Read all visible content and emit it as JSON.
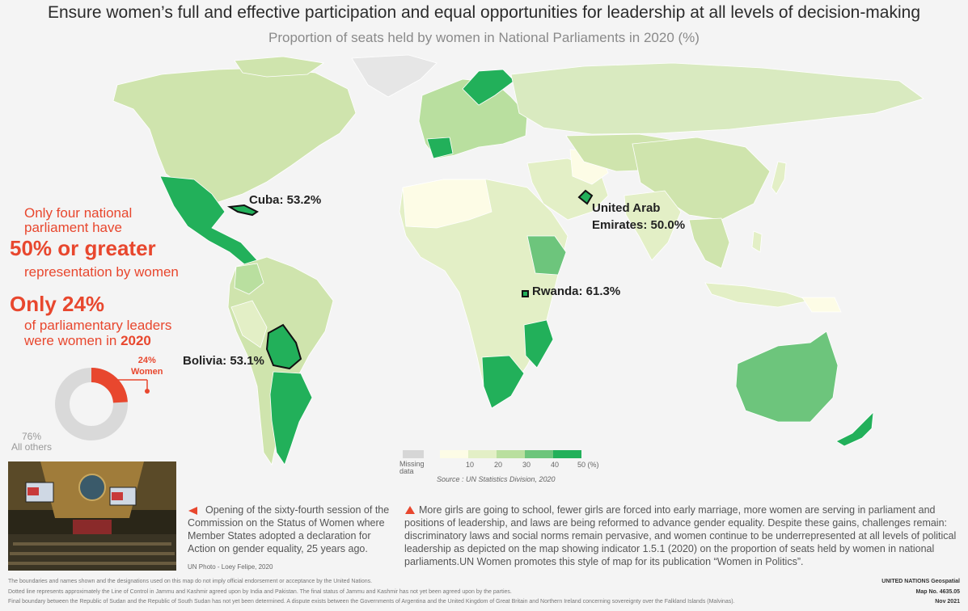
{
  "header": {
    "title": "Ensure women’s full and effective participation and equal opportunities for leadership at all levels of decision-making",
    "subtitle": "Proportion of seats held by women in National Parliaments in 2020 (%)"
  },
  "callouts": {
    "cuba": "Cuba: 53.2%",
    "uae_line1": "United Arab",
    "uae_line2": "Emirates: 50.0%",
    "rwanda": "Rwanda: 61.3%",
    "bolivia": "Bolivia: 53.1%"
  },
  "stats": {
    "line1": "Only four national",
    "line2": "parliament have",
    "big1": "50% or greater",
    "line3": "representation by women",
    "big2": "Only 24%",
    "line4": "of parliamentary leaders",
    "line5_prefix": "were women in",
    "line5_year": "2020"
  },
  "donut": {
    "women_pct_label": "24%",
    "women_label": "Women",
    "others_pct_label": "76%",
    "others_label": "All others",
    "women_fraction": 0.24,
    "women_color": "#e8472e",
    "others_color": "#d9d9d9"
  },
  "legend": {
    "missing_line1": "Missing",
    "missing_line2": "data",
    "ticks": [
      "10",
      "20",
      "30",
      "40",
      "50 (%)"
    ],
    "colors": [
      "#fdfce6",
      "#e3efc6",
      "#b9df9f",
      "#6dc57c",
      "#22b05a"
    ],
    "missing_color": "#d6d6d6"
  },
  "source": "Source : UN Statistics Division, 2020",
  "photo": {
    "credit": "UN Photo - Loey Felipe, 2020"
  },
  "captions": {
    "left": "Opening of the sixty-fourth session of the Commission on the Status of Women where Member States adopted a declaration for Action on gender equality, 25 years ago.",
    "right": "More girls are going to school, fewer girls are forced into early marriage, more women are serving in parliament and positions of leadership, and laws are being reformed to advance gender equality. Despite these gains, challenges remain: discriminatory laws and social norms remain pervasive, and women continue to be underrepresented at all levels of political leadership as depicted on the map showing indicator 1.5.1 (2020) on the proportion of seats held by women in national parliaments.UN Women promotes this style of map for its publication “Women in Politics”."
  },
  "footer": {
    "line1": "The boundaries and names shown and the designations used on this map do not imply official endorsement or acceptance by the United Nations.",
    "line2": "Dotted line represents approximately the Line of Control in Jammu and Kashmir agreed upon by India and Pakistan. The final status of Jammu and Kashmir has not yet been agreed upon by the parties.",
    "line3": "Final boundary between the Republic of Sudan and the Republic of South Sudan has not yet been determined. A dispute exists between the Governments of Argentina and the United Kingdom of Great Britain and Northern Ireland concerning sovereignty over the Falkland Islands (Malvinas).",
    "org": "UNITED NATIONS Geospatial",
    "map_no": "Map No. 4635.05",
    "date": "Nov 2021"
  }
}
